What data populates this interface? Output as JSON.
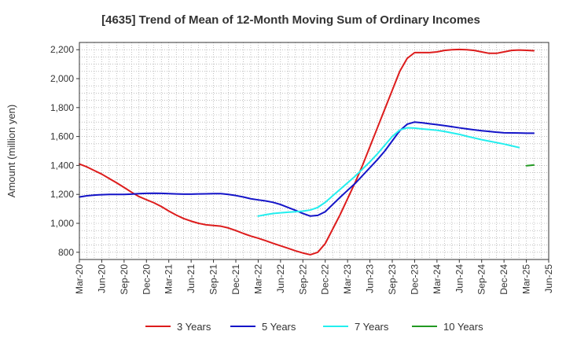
{
  "chart_data": {
    "type": "line",
    "title": "[4635]  Trend of Mean of 12-Month Moving Sum of Ordinary Incomes",
    "xlabel": "",
    "ylabel": "Amount (million yen)",
    "ylim": [
      750,
      2250
    ],
    "y_ticks": [
      800,
      1000,
      1200,
      1400,
      1600,
      1800,
      2000,
      2200
    ],
    "y_tick_labels": [
      "800",
      "1,000",
      "1,200",
      "1,400",
      "1,600",
      "1,800",
      "2,000",
      "2,200"
    ],
    "x_ticks": [
      "Mar-20",
      "Jun-20",
      "Sep-20",
      "Dec-20",
      "Mar-21",
      "Jun-21",
      "Sep-21",
      "Dec-21",
      "Mar-22",
      "Jun-22",
      "Sep-22",
      "Dec-22",
      "Mar-23",
      "Jun-23",
      "Sep-23",
      "Dec-23",
      "Mar-24",
      "Jun-24",
      "Sep-24",
      "Dec-24",
      "Mar-25",
      "Jun-25"
    ],
    "grid": true,
    "legend_position": "bottom",
    "series": [
      {
        "name": "3 Years",
        "color": "#dd1c1c",
        "start_index": 0,
        "values": [
          1410,
          1390,
          1365,
          1340,
          1310,
          1280,
          1248,
          1215,
          1185,
          1163,
          1142,
          1116,
          1085,
          1057,
          1033,
          1015,
          1000,
          990,
          985,
          980,
          968,
          950,
          930,
          912,
          897,
          880,
          862,
          845,
          828,
          810,
          795,
          783,
          800,
          860,
          960,
          1060,
          1170,
          1280,
          1400,
          1530,
          1660,
          1790,
          1920,
          2050,
          2140,
          2180,
          2180,
          2180,
          2185,
          2195,
          2200,
          2202,
          2200,
          2195,
          2185,
          2175,
          2175,
          2185,
          2195,
          2198,
          2196,
          2193
        ]
      },
      {
        "name": "5 Years",
        "color": "#1414c8",
        "start_index": 0,
        "values": [
          1182,
          1190,
          1195,
          1198,
          1200,
          1200,
          1200,
          1202,
          1205,
          1207,
          1208,
          1207,
          1205,
          1203,
          1202,
          1202,
          1203,
          1204,
          1205,
          1205,
          1200,
          1192,
          1182,
          1170,
          1162,
          1155,
          1145,
          1130,
          1110,
          1090,
          1068,
          1050,
          1055,
          1080,
          1130,
          1180,
          1228,
          1275,
          1330,
          1385,
          1440,
          1500,
          1570,
          1640,
          1685,
          1700,
          1695,
          1688,
          1682,
          1675,
          1668,
          1660,
          1653,
          1646,
          1640,
          1635,
          1630,
          1626,
          1625,
          1624,
          1623,
          1623
        ]
      },
      {
        "name": "7 Years",
        "color": "#22eeee",
        "start_index": 24,
        "values": [
          1050,
          1060,
          1068,
          1073,
          1077,
          1080,
          1084,
          1092,
          1110,
          1145,
          1190,
          1235,
          1280,
          1325,
          1375,
          1425,
          1480,
          1540,
          1600,
          1645,
          1660,
          1658,
          1652,
          1648,
          1643,
          1635,
          1625,
          1615,
          1602,
          1590,
          1578,
          1568,
          1558,
          1548,
          1536,
          1524
        ]
      },
      {
        "name": "10 Years",
        "color": "#229922",
        "start_index": 60,
        "values": [
          1398,
          1403
        ]
      }
    ]
  }
}
